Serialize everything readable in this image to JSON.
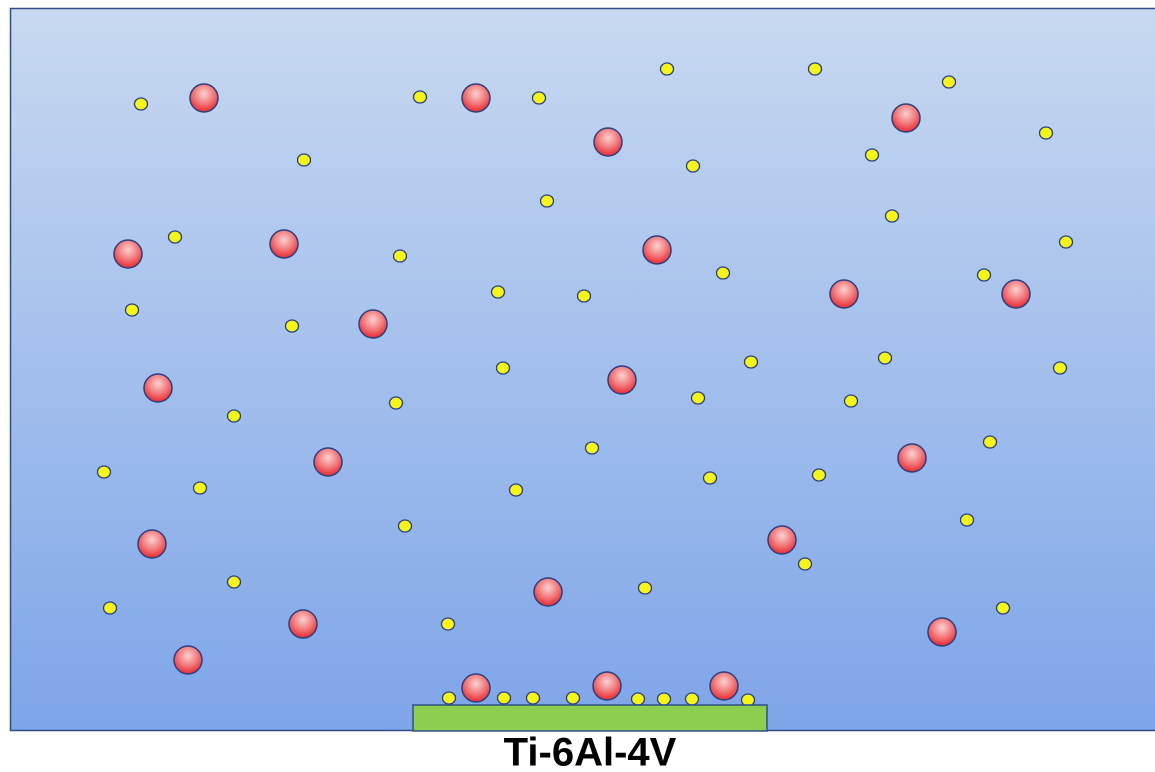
{
  "substrate": {
    "label": "Ti-6Al-4V"
  }
}
